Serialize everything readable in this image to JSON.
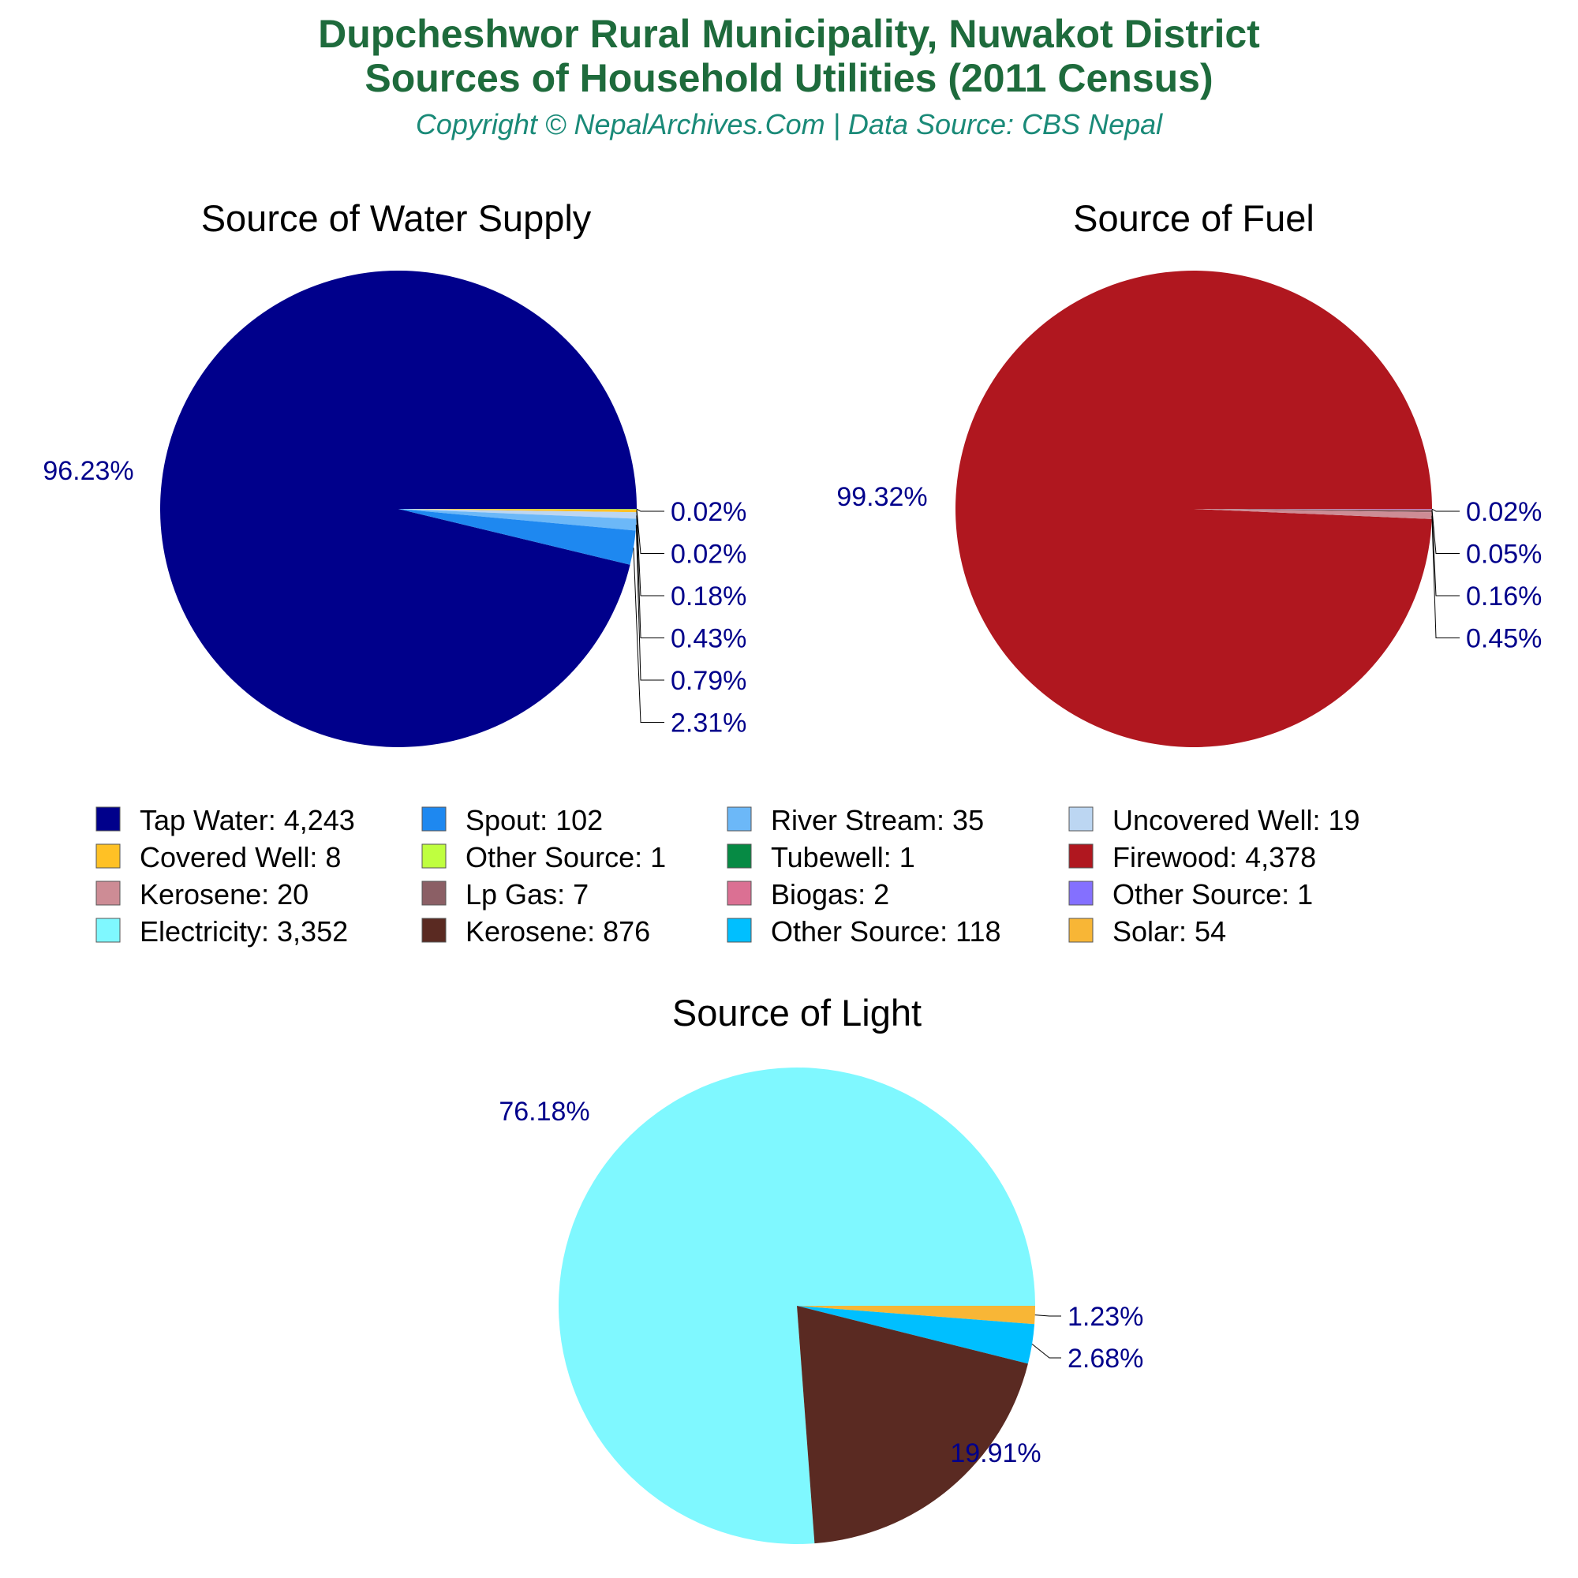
{
  "header": {
    "title_line1": "Dupcheshwor Rural Municipality, Nuwakot District",
    "title_line2": "Sources of Household Utilities (2011 Census)",
    "subtitle": "Copyright © NepalArchives.Com | Data Source: CBS Nepal"
  },
  "chart_data": [
    {
      "type": "pie",
      "title": "Source of Water Supply",
      "slices": [
        {
          "label": "Tap Water",
          "value": 4243,
          "value_text": "4,243",
          "pct": "96.23%",
          "color": "#00008b"
        },
        {
          "label": "Spout",
          "value": 102,
          "value_text": "102",
          "pct": "2.31%",
          "color": "#1e88f0"
        },
        {
          "label": "River Stream",
          "value": 35,
          "value_text": "35",
          "pct": "0.79%",
          "color": "#6cb8f8"
        },
        {
          "label": "Uncovered Well",
          "value": 19,
          "value_text": "19",
          "pct": "0.43%",
          "color": "#bcd6f2"
        },
        {
          "label": "Covered Well",
          "value": 8,
          "value_text": "8",
          "pct": "0.18%",
          "color": "#ffc125"
        },
        {
          "label": "Other Source",
          "value": 1,
          "value_text": "1",
          "pct": "0.02%",
          "color": "#bfff3f"
        },
        {
          "label": "Tubewell",
          "value": 1,
          "value_text": "1",
          "pct": "0.02%",
          "color": "#068a44"
        }
      ]
    },
    {
      "type": "pie",
      "title": "Source of Fuel",
      "slices": [
        {
          "label": "Firewood",
          "value": 4378,
          "value_text": "4,378",
          "pct": "99.32%",
          "color": "#b0171f"
        },
        {
          "label": "Kerosene",
          "value": 20,
          "value_text": "20",
          "pct": "0.45%",
          "color": "#cd8c95"
        },
        {
          "label": "Lp Gas",
          "value": 7,
          "value_text": "7",
          "pct": "0.16%",
          "color": "#8b5f65"
        },
        {
          "label": "Biogas",
          "value": 2,
          "value_text": "2",
          "pct": "0.05%",
          "color": "#db7093"
        },
        {
          "label": "Other Source",
          "value": 1,
          "value_text": "1",
          "pct": "0.02%",
          "color": "#8470ff"
        }
      ]
    },
    {
      "type": "pie",
      "title": "Source of Light",
      "slices": [
        {
          "label": "Electricity",
          "value": 3352,
          "value_text": "3,352",
          "pct": "76.18%",
          "color": "#7ff8ff"
        },
        {
          "label": "Kerosene",
          "value": 876,
          "value_text": "876",
          "pct": "19.91%",
          "color": "#5a2a22"
        },
        {
          "label": "Other Source",
          "value": 118,
          "value_text": "118",
          "pct": "2.68%",
          "color": "#00bfff"
        },
        {
          "label": "Solar",
          "value": 54,
          "value_text": "54",
          "pct": "1.23%",
          "color": "#f8b636"
        }
      ]
    }
  ],
  "legend": [
    {
      "label": "Tap Water: 4,243",
      "color": "#00008b"
    },
    {
      "label": "Spout: 102",
      "color": "#1e88f0"
    },
    {
      "label": "River Stream: 35",
      "color": "#6cb8f8"
    },
    {
      "label": "Uncovered Well: 19",
      "color": "#bcd6f2"
    },
    {
      "label": "Covered Well: 8",
      "color": "#ffc125"
    },
    {
      "label": "Other Source: 1",
      "color": "#bfff3f"
    },
    {
      "label": "Tubewell: 1",
      "color": "#068a44"
    },
    {
      "label": "Firewood: 4,378",
      "color": "#b0171f"
    },
    {
      "label": "Kerosene: 20",
      "color": "#cd8c95"
    },
    {
      "label": "Lp Gas: 7",
      "color": "#8b5f65"
    },
    {
      "label": "Biogas: 2",
      "color": "#db7093"
    },
    {
      "label": "Other Source: 1",
      "color": "#8470ff"
    },
    {
      "label": "Electricity: 3,352",
      "color": "#7ff8ff"
    },
    {
      "label": "Kerosene: 876",
      "color": "#5a2a22"
    },
    {
      "label": "Other Source: 118",
      "color": "#00bfff"
    },
    {
      "label": "Solar: 54",
      "color": "#f8b636"
    }
  ]
}
